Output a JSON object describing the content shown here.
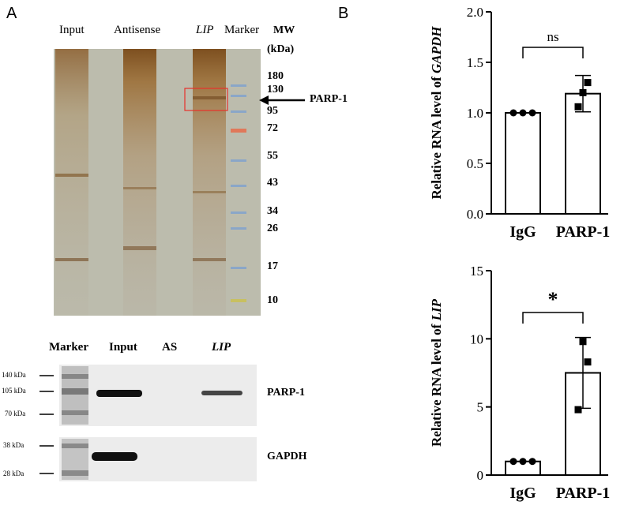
{
  "panel_a": {
    "letter": "A",
    "gel": {
      "lanes": [
        {
          "label": "Input",
          "italic": false
        },
        {
          "label": "Antisense",
          "italic": false
        },
        {
          "label": "LIP",
          "italic": true
        },
        {
          "label": "Marker",
          "italic": false
        }
      ],
      "mw_header": "MW",
      "mw_unit": "(kDa)",
      "mw_values": [
        "180",
        "130",
        "95",
        "72",
        "55",
        "43",
        "34",
        "26",
        "17",
        "10"
      ],
      "arrow_label": "PARP-1",
      "colors": {
        "gel_bg": "#b9b8a8",
        "band": "#8a5a20",
        "box": "#e8302a",
        "marker_band": "#8aa6c8",
        "marker_red": "#e0785a"
      }
    },
    "western": {
      "lanes": [
        {
          "label": "Marker",
          "italic": false
        },
        {
          "label": "Input",
          "italic": false
        },
        {
          "label": "AS",
          "italic": false
        },
        {
          "label": "LIP",
          "italic": true
        }
      ],
      "blots": [
        {
          "name": "PARP-1",
          "ladder": [
            "140 kDa",
            "105 kDa",
            "70 kDa"
          ]
        },
        {
          "name": "GAPDH",
          "ladder": [
            "38 kDa",
            "28 kDa"
          ]
        }
      ]
    }
  },
  "panel_b": {
    "letter": "B"
  },
  "chart_data": [
    {
      "type": "bar",
      "categories": [
        "IgG",
        "PARP-1"
      ],
      "values": [
        1.0,
        1.19
      ],
      "error": [
        0.0,
        0.18
      ],
      "points": [
        [
          1.0,
          1.0,
          1.0
        ],
        [
          1.3,
          1.06,
          1.2
        ]
      ],
      "ylabel_prefix": "Relative RNA level of ",
      "ylabel_gene": "GAPDH",
      "ylim": [
        0,
        2.0
      ],
      "yticks": [
        "0.0",
        "0.5",
        "1.0",
        "1.5",
        "2.0"
      ],
      "significance": "ns"
    },
    {
      "type": "bar",
      "categories": [
        "IgG",
        "PARP-1"
      ],
      "values": [
        1.0,
        7.5
      ],
      "error": [
        0.0,
        2.6
      ],
      "points": [
        [
          1.0,
          1.0,
          1.0
        ],
        [
          8.3,
          4.8,
          9.8
        ]
      ],
      "ylabel_prefix": "Relative RNA level of ",
      "ylabel_gene": "LIP",
      "ylim": [
        0,
        15
      ],
      "yticks": [
        "0",
        "5",
        "10",
        "15"
      ],
      "significance": "*"
    }
  ]
}
